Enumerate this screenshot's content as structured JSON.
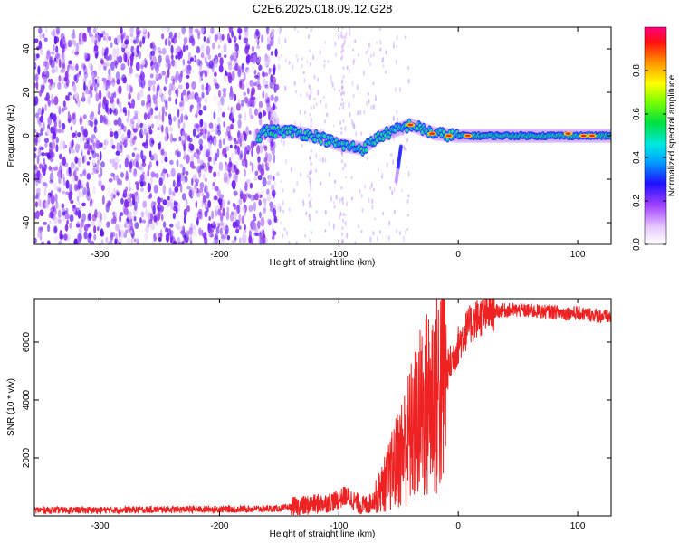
{
  "title": "C2E6.2025.018.09.12.G28",
  "chart_data": [
    {
      "type": "heatmap",
      "xlabel": "Height of straight line (km)",
      "ylabel": "Frequency (Hz)",
      "xlim": [
        -355,
        128
      ],
      "ylim": [
        -50,
        50
      ],
      "xticks": [
        -300,
        -200,
        -100,
        0,
        100
      ],
      "yticks": [
        -40,
        -20,
        0,
        20,
        40
      ],
      "colorbar": {
        "label": "Normalized spectral amplitude",
        "range": [
          0,
          1
        ],
        "ticks": [
          "0.0",
          "0.2",
          "0.4",
          "0.6",
          "0.8"
        ]
      },
      "ridge": {
        "description_points": [
          {
            "x": -165,
            "y": 2
          },
          {
            "x": -140,
            "y": 2
          },
          {
            "x": -120,
            "y": 0
          },
          {
            "x": -100,
            "y": -4
          },
          {
            "x": -80,
            "y": -6
          },
          {
            "x": -65,
            "y": 0
          },
          {
            "x": -50,
            "y": 3
          },
          {
            "x": -40,
            "y": 5
          },
          {
            "x": -20,
            "y": 1
          },
          {
            "x": 0,
            "y": 0
          },
          {
            "x": 50,
            "y": 0
          },
          {
            "x": 100,
            "y": 0
          },
          {
            "x": 128,
            "y": 0
          }
        ]
      }
    },
    {
      "type": "line",
      "xlabel": "Height of straight line (km)",
      "ylabel": "SNR (10 * v/v)",
      "xlim": [
        -355,
        128
      ],
      "ylim": [
        0,
        7500
      ],
      "xticks": [
        -300,
        -200,
        -100,
        0,
        100
      ],
      "yticks": [
        2000,
        4000,
        6000
      ],
      "series": [
        {
          "color": "#ee2222",
          "x": [
            -355,
            -300,
            -250,
            -200,
            -150,
            -130,
            -110,
            -100,
            -95,
            -90,
            -85,
            -80,
            -75,
            -70,
            -65,
            -60,
            -55,
            -50,
            -45,
            -40,
            -35,
            -30,
            -25,
            -20,
            -15,
            -10,
            -5,
            0,
            5,
            10,
            15,
            20,
            25,
            30,
            40,
            50,
            60,
            70,
            80,
            90,
            100,
            110,
            120,
            128
          ],
          "y": [
            200,
            200,
            220,
            230,
            250,
            350,
            450,
            550,
            700,
            600,
            450,
            350,
            400,
            600,
            900,
            1200,
            1600,
            2000,
            2400,
            2800,
            3200,
            3600,
            3900,
            4200,
            4500,
            4900,
            5400,
            5900,
            6300,
            6600,
            6800,
            6900,
            7000,
            7050,
            7100,
            7100,
            7080,
            7050,
            7050,
            7000,
            7000,
            6950,
            6900,
            6850
          ]
        }
      ]
    }
  ]
}
